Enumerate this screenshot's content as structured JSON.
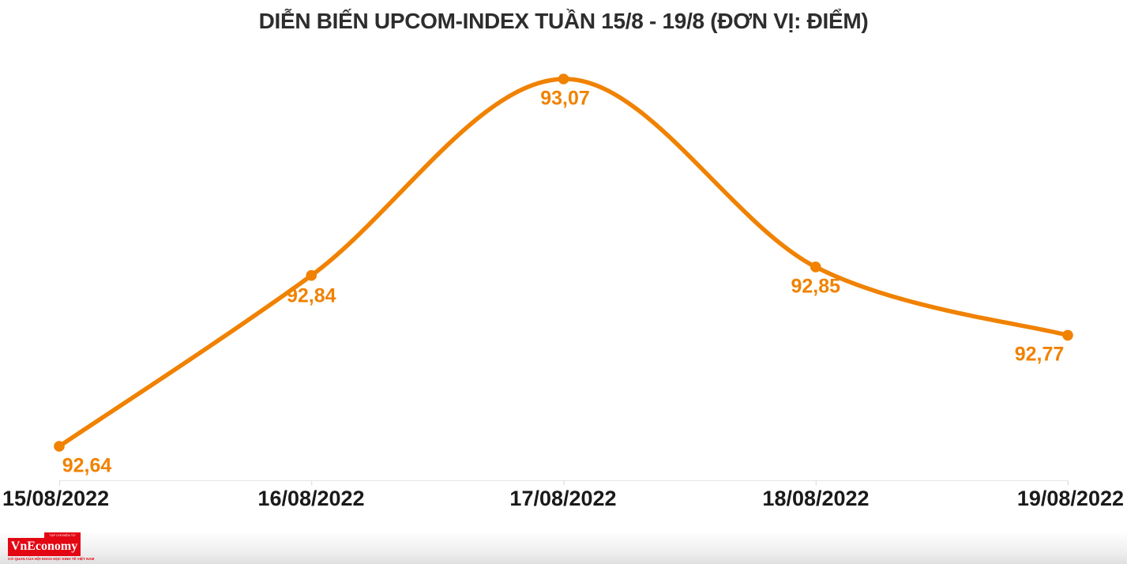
{
  "title": "DIỄN BIẾN UPCOM-INDEX TUẦN 15/8 - 19/8 (ĐƠN VỊ: ĐIỂM)",
  "chart_data": {
    "type": "line",
    "series_name": "UPCOM-INDEX",
    "categories": [
      "15/08/2022",
      "16/08/2022",
      "17/08/2022",
      "18/08/2022",
      "19/08/2022"
    ],
    "values": [
      92.64,
      92.84,
      93.07,
      92.85,
      92.77
    ],
    "display_values": [
      "92,64",
      "92,84",
      "93,07",
      "92,85",
      "92,77"
    ],
    "title": "DIỄN BIẾN UPCOM-INDEX TUẦN 15/8 - 19/8 (ĐƠN VỊ: ĐIỂM)",
    "unit": "ĐIỂM",
    "xlabel": "",
    "ylabel": "",
    "ylim": [
      92.6,
      93.12
    ],
    "grid": false,
    "legend": "none",
    "smooth": true,
    "markers": true,
    "line_color": "#F08200",
    "label_color": "#F08200",
    "axis_color": "#E6E6E6",
    "tick_color": "#D8D8D8"
  },
  "footer": {
    "logo_title": "VnEconomy",
    "logo_tab": "TẠP CHÍ ĐIỆN TỬ",
    "logo_tagline": "CƠ QUAN CỦA HỘI KHOA HỌC KINH TẾ VIỆT NAM",
    "logo_color": "#E30613"
  }
}
